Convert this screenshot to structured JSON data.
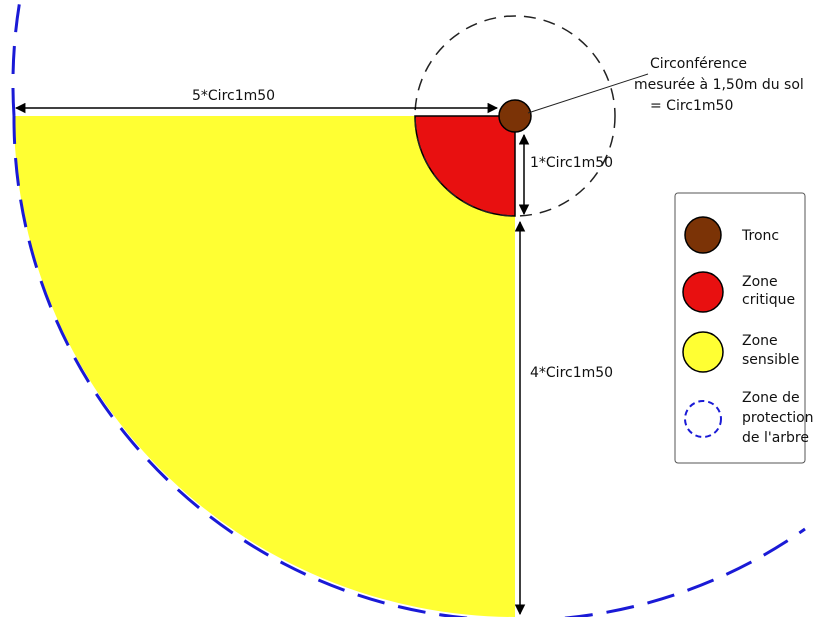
{
  "diagram": {
    "dimension_labels": {
      "horizontal": "5*Circ1m50",
      "vertical_short": "1*Circ1m50",
      "vertical_long": "4*Circ1m50"
    },
    "annotation": {
      "line1": "Circonférence",
      "line2": "mesurée à 1,50m du sol",
      "line3": "= Circ1m50"
    },
    "legend": {
      "items": [
        {
          "id": "tronc",
          "lines": [
            "Tronc"
          ],
          "color": "#7b3306",
          "stroke": "#000000",
          "dashed": false
        },
        {
          "id": "zone-critique",
          "lines": [
            "Zone",
            "critique"
          ],
          "color": "#e81010",
          "stroke": "#000000",
          "dashed": false
        },
        {
          "id": "zone-sensible",
          "lines": [
            "Zone",
            "sensible"
          ],
          "color": "#ffff33",
          "stroke": "#000000",
          "dashed": false
        },
        {
          "id": "zone-protection",
          "lines": [
            "Zone de",
            "protection",
            "de l'arbre"
          ],
          "color": "none",
          "stroke": "#1a1ad6",
          "dashed": true
        }
      ]
    },
    "colors": {
      "trunk": "#7b3306",
      "critical": "#e81010",
      "sensitive": "#ffff33",
      "protection": "#1a1ad6",
      "guide": "#222222"
    }
  }
}
